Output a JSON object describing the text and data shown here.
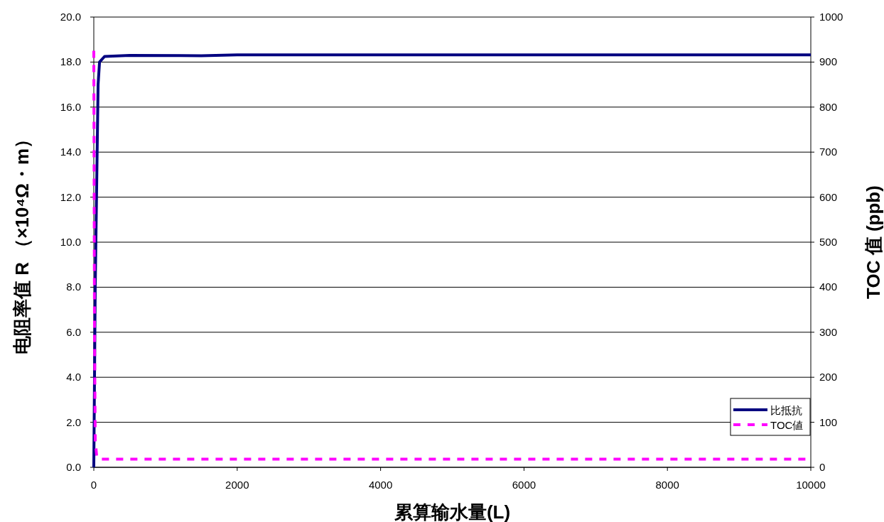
{
  "chart_data": {
    "type": "line",
    "xlabel": "累算输水量(L)",
    "ylabel": "电阻率值 R （×10⁴Ω・m）",
    "y2label": "TOC 值 (ppb)",
    "xlim": [
      0,
      10000
    ],
    "xticks": [
      0,
      2000,
      4000,
      6000,
      8000,
      10000
    ],
    "ylim": [
      0,
      20
    ],
    "yticks": [
      {
        "value": 0,
        "label": "0.0"
      },
      {
        "value": 2,
        "label": "2.0"
      },
      {
        "value": 4,
        "label": "4.0"
      },
      {
        "value": 6,
        "label": "6.0"
      },
      {
        "value": 8,
        "label": "8.0"
      },
      {
        "value": 10,
        "label": "10.0"
      },
      {
        "value": 12,
        "label": "12.0"
      },
      {
        "value": 14,
        "label": "14.0"
      },
      {
        "value": 16,
        "label": "16.0"
      },
      {
        "value": 18,
        "label": "18.0"
      },
      {
        "value": 20,
        "label": "20.0"
      }
    ],
    "y2lim": [
      0,
      1000
    ],
    "y2ticks": [
      0,
      100,
      200,
      300,
      400,
      500,
      600,
      700,
      800,
      900,
      1000
    ],
    "grid": "y",
    "legend": "bottom right",
    "marker": "none",
    "series": [
      {
        "name": "比抵抗",
        "color": "#000080",
        "line_style": "solid",
        "x": [
          0,
          20,
          60,
          80,
          150,
          500,
          1500,
          2000,
          10000
        ],
        "values": [
          0,
          8,
          17,
          18.0,
          18.25,
          18.3,
          18.28,
          18.32,
          18.32
        ]
      },
      {
        "name": "TOC値",
        "color": "#ff00ff",
        "line_style": "dashed",
        "axis": "y2",
        "x": [
          0,
          10,
          20,
          40,
          80,
          200,
          10000
        ],
        "values": [
          925,
          300,
          60,
          25,
          18,
          18,
          18
        ]
      }
    ]
  }
}
